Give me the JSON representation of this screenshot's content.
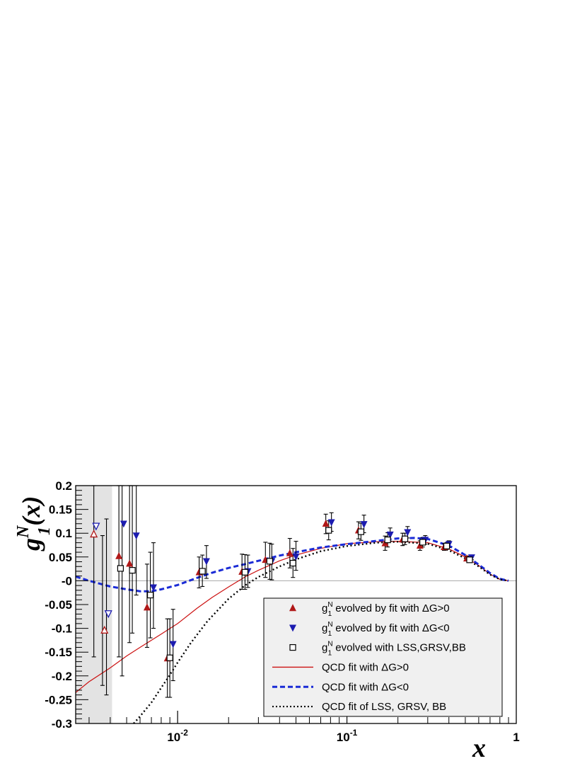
{
  "chart_data": {
    "type": "scatter",
    "xlabel": "x",
    "ylabel": "g",
    "ylabel_sup": "N",
    "ylabel_sub": "1",
    "ylabel_arg": "(x)",
    "xscale": "log",
    "xlim": [
      0.0025,
      1.0
    ],
    "ylim": [
      -0.3,
      0.2
    ],
    "shaded_region": [
      0.0025,
      0.0041
    ],
    "x_tick_labels": [
      {
        "x": 0.01,
        "label": "10",
        "sup": "-2"
      },
      {
        "x": 0.1,
        "label": "10",
        "sup": "-1"
      },
      {
        "x": 1,
        "label": "1",
        "sup": ""
      }
    ],
    "y_tick_labels": [
      {
        "y": 0.2,
        "label": "0.2"
      },
      {
        "y": 0.15,
        "label": "0.15"
      },
      {
        "y": 0.1,
        "label": "0.1"
      },
      {
        "y": 0.05,
        "label": "0.05"
      },
      {
        "y": 0.0,
        "label": "-0"
      },
      {
        "y": -0.05,
        "label": "-0.05"
      },
      {
        "y": -0.1,
        "label": "-0.1"
      },
      {
        "y": -0.15,
        "label": "-0.15"
      },
      {
        "y": -0.2,
        "label": "-0.2"
      },
      {
        "y": -0.25,
        "label": "-0.25"
      },
      {
        "y": -0.3,
        "label": "-0.3"
      }
    ],
    "legend": {
      "position": "bottom-right",
      "entries": [
        {
          "text_main": "g",
          "text_sup": "N",
          "text_sub": "1",
          "text_rest": " evolved by fit with ΔG>0",
          "marker": "triangle-up",
          "color": "#b01818"
        },
        {
          "text_main": "g",
          "text_sup": "N",
          "text_sub": "1",
          "text_rest": " evolved by fit with ΔG<0",
          "marker": "triangle-down",
          "color": "#1c1cb0"
        },
        {
          "text_main": "g",
          "text_sup": "N",
          "text_sub": "1",
          "text_rest": " evolved with LSS,GRSV,BB",
          "marker": "open-square",
          "color": "#000000"
        },
        {
          "text_main": "QCD fit with ΔG>0",
          "text_sup": "",
          "text_sub": "",
          "text_rest": "",
          "marker": "solid-line",
          "color": "#cc1111"
        },
        {
          "text_main": "QCD fit with ΔG<0",
          "text_sup": "",
          "text_sub": "",
          "text_rest": "",
          "marker": "dashed-line",
          "color": "#1a2bd6"
        },
        {
          "text_main": "QCD fit of LSS, GRSV, BB",
          "text_sup": "",
          "text_sub": "",
          "text_rest": "",
          "marker": "dotted-line",
          "color": "#000000"
        }
      ]
    },
    "series": [
      {
        "marker": "triangle-up",
        "color": "#b01818",
        "points": [
          {
            "x": 0.0032,
            "y": 0.098,
            "open": true
          },
          {
            "x": 0.0037,
            "y": -0.104,
            "open": true
          },
          {
            "x": 0.0045,
            "y": 0.052
          },
          {
            "x": 0.0052,
            "y": 0.036
          },
          {
            "x": 0.0066,
            "y": -0.056
          },
          {
            "x": 0.0087,
            "y": -0.163
          },
          {
            "x": 0.0134,
            "y": 0.018
          },
          {
            "x": 0.024,
            "y": 0.019
          },
          {
            "x": 0.033,
            "y": 0.044
          },
          {
            "x": 0.046,
            "y": 0.058
          },
          {
            "x": 0.075,
            "y": 0.12
          },
          {
            "x": 0.117,
            "y": 0.106
          },
          {
            "x": 0.168,
            "y": 0.079
          },
          {
            "x": 0.213,
            "y": 0.087
          },
          {
            "x": 0.27,
            "y": 0.074
          },
          {
            "x": 0.375,
            "y": 0.071
          },
          {
            "x": 0.51,
            "y": 0.047
          }
        ]
      },
      {
        "marker": "triangle-down",
        "color": "#1c1cb0",
        "points": [
          {
            "x": 0.0033,
            "y": 0.115,
            "open": true
          },
          {
            "x": 0.0039,
            "y": -0.069,
            "open": true
          },
          {
            "x": 0.0048,
            "y": 0.12
          },
          {
            "x": 0.0057,
            "y": 0.095
          },
          {
            "x": 0.0072,
            "y": -0.014
          },
          {
            "x": 0.0094,
            "y": -0.133
          },
          {
            "x": 0.0148,
            "y": 0.041
          },
          {
            "x": 0.026,
            "y": 0.02
          },
          {
            "x": 0.036,
            "y": 0.041
          },
          {
            "x": 0.05,
            "y": 0.051
          },
          {
            "x": 0.081,
            "y": 0.123
          },
          {
            "x": 0.126,
            "y": 0.119
          },
          {
            "x": 0.18,
            "y": 0.097
          },
          {
            "x": 0.228,
            "y": 0.102
          },
          {
            "x": 0.29,
            "y": 0.086
          },
          {
            "x": 0.4,
            "y": 0.077
          },
          {
            "x": 0.545,
            "y": 0.049
          }
        ]
      },
      {
        "marker": "open-square",
        "color": "#000000",
        "points": [
          {
            "x": 0.0046,
            "y": 0.026
          },
          {
            "x": 0.0054,
            "y": 0.022
          },
          {
            "x": 0.0069,
            "y": -0.03
          },
          {
            "x": 0.009,
            "y": -0.162
          },
          {
            "x": 0.014,
            "y": 0.02
          },
          {
            "x": 0.025,
            "y": 0.018
          },
          {
            "x": 0.035,
            "y": 0.041
          },
          {
            "x": 0.048,
            "y": 0.037
          },
          {
            "x": 0.078,
            "y": 0.106
          },
          {
            "x": 0.121,
            "y": 0.103
          },
          {
            "x": 0.174,
            "y": 0.086
          },
          {
            "x": 0.22,
            "y": 0.088
          },
          {
            "x": 0.28,
            "y": 0.081
          },
          {
            "x": 0.388,
            "y": 0.073
          },
          {
            "x": 0.53,
            "y": 0.044
          }
        ]
      }
    ],
    "error_bars": [
      {
        "x": 0.0032,
        "lo": -0.16,
        "hi": 0.2
      },
      {
        "x": 0.0036,
        "lo": -0.22,
        "hi": 0.095
      },
      {
        "x": 0.0038,
        "lo": -0.24,
        "hi": 0.13
      },
      {
        "x": 0.0045,
        "lo": -0.16,
        "hi": 0.2
      },
      {
        "x": 0.0047,
        "lo": -0.2,
        "hi": 0.2
      },
      {
        "x": 0.0052,
        "lo": -0.13,
        "hi": 0.2
      },
      {
        "x": 0.0054,
        "lo": -0.11,
        "hi": 0.2
      },
      {
        "x": 0.0057,
        "lo": -0.03,
        "hi": 0.2
      },
      {
        "x": 0.0066,
        "lo": -0.14,
        "hi": 0.035
      },
      {
        "x": 0.0069,
        "lo": -0.12,
        "hi": 0.06
      },
      {
        "x": 0.0072,
        "lo": -0.1,
        "hi": 0.08
      },
      {
        "x": 0.0087,
        "lo": -0.245,
        "hi": -0.08
      },
      {
        "x": 0.009,
        "lo": -0.245,
        "hi": -0.08
      },
      {
        "x": 0.0094,
        "lo": -0.21,
        "hi": -0.06
      },
      {
        "x": 0.0134,
        "lo": -0.015,
        "hi": 0.05
      },
      {
        "x": 0.014,
        "lo": -0.012,
        "hi": 0.054
      },
      {
        "x": 0.0148,
        "lo": 0.005,
        "hi": 0.074
      },
      {
        "x": 0.024,
        "lo": -0.018,
        "hi": 0.056
      },
      {
        "x": 0.025,
        "lo": -0.018,
        "hi": 0.055
      },
      {
        "x": 0.026,
        "lo": -0.014,
        "hi": 0.054
      },
      {
        "x": 0.033,
        "lo": 0.007,
        "hi": 0.081
      },
      {
        "x": 0.035,
        "lo": 0.003,
        "hi": 0.079
      },
      {
        "x": 0.036,
        "lo": 0.002,
        "hi": 0.077
      },
      {
        "x": 0.046,
        "lo": 0.027,
        "hi": 0.089
      },
      {
        "x": 0.048,
        "lo": 0.007,
        "hi": 0.068
      },
      {
        "x": 0.05,
        "lo": 0.022,
        "hi": 0.083
      },
      {
        "x": 0.075,
        "lo": 0.099,
        "hi": 0.14
      },
      {
        "x": 0.078,
        "lo": 0.086,
        "hi": 0.126
      },
      {
        "x": 0.081,
        "lo": 0.104,
        "hi": 0.143
      },
      {
        "x": 0.117,
        "lo": 0.088,
        "hi": 0.124
      },
      {
        "x": 0.121,
        "lo": 0.085,
        "hi": 0.121
      },
      {
        "x": 0.126,
        "lo": 0.101,
        "hi": 0.138
      },
      {
        "x": 0.168,
        "lo": 0.064,
        "hi": 0.094
      },
      {
        "x": 0.174,
        "lo": 0.071,
        "hi": 0.101
      },
      {
        "x": 0.18,
        "lo": 0.083,
        "hi": 0.111
      },
      {
        "x": 0.213,
        "lo": 0.074,
        "hi": 0.1
      },
      {
        "x": 0.22,
        "lo": 0.076,
        "hi": 0.1
      },
      {
        "x": 0.228,
        "lo": 0.09,
        "hi": 0.114
      },
      {
        "x": 0.27,
        "lo": 0.064,
        "hi": 0.084
      },
      {
        "x": 0.28,
        "lo": 0.071,
        "hi": 0.091
      },
      {
        "x": 0.29,
        "lo": 0.077,
        "hi": 0.095
      },
      {
        "x": 0.375,
        "lo": 0.064,
        "hi": 0.078
      },
      {
        "x": 0.388,
        "lo": 0.066,
        "hi": 0.08
      },
      {
        "x": 0.4,
        "lo": 0.07,
        "hi": 0.084
      },
      {
        "x": 0.51,
        "lo": 0.042,
        "hi": 0.052
      },
      {
        "x": 0.53,
        "lo": 0.04,
        "hi": 0.049
      },
      {
        "x": 0.545,
        "lo": 0.044,
        "hi": 0.054
      }
    ],
    "curves": [
      {
        "style": "solid",
        "color": "#cc1111",
        "points": [
          [
            0.0025,
            -0.235
          ],
          [
            0.003,
            -0.212
          ],
          [
            0.004,
            -0.183
          ],
          [
            0.005,
            -0.158
          ],
          [
            0.006,
            -0.14
          ],
          [
            0.008,
            -0.112
          ],
          [
            0.01,
            -0.09
          ],
          [
            0.013,
            -0.058
          ],
          [
            0.016,
            -0.035
          ],
          [
            0.02,
            -0.013
          ],
          [
            0.025,
            0.008
          ],
          [
            0.03,
            0.022
          ],
          [
            0.04,
            0.042
          ],
          [
            0.05,
            0.054
          ],
          [
            0.07,
            0.068
          ],
          [
            0.1,
            0.078
          ],
          [
            0.15,
            0.082
          ],
          [
            0.2,
            0.083
          ],
          [
            0.3,
            0.08
          ],
          [
            0.4,
            0.067
          ],
          [
            0.5,
            0.05
          ],
          [
            0.6,
            0.032
          ],
          [
            0.7,
            0.014
          ],
          [
            0.8,
            0.003
          ],
          [
            0.9,
            0.0
          ]
        ]
      },
      {
        "style": "dashed",
        "color": "#1a2bd6",
        "points": [
          [
            0.0025,
            0.009
          ],
          [
            0.003,
            0.0
          ],
          [
            0.004,
            -0.012
          ],
          [
            0.005,
            -0.018
          ],
          [
            0.006,
            -0.022
          ],
          [
            0.007,
            -0.022
          ],
          [
            0.008,
            -0.018
          ],
          [
            0.01,
            -0.009
          ],
          [
            0.013,
            0.006
          ],
          [
            0.016,
            0.017
          ],
          [
            0.02,
            0.027
          ],
          [
            0.025,
            0.035
          ],
          [
            0.03,
            0.042
          ],
          [
            0.04,
            0.053
          ],
          [
            0.05,
            0.06
          ],
          [
            0.07,
            0.07
          ],
          [
            0.1,
            0.077
          ],
          [
            0.15,
            0.084
          ],
          [
            0.2,
            0.089
          ],
          [
            0.25,
            0.09
          ],
          [
            0.3,
            0.088
          ],
          [
            0.4,
            0.074
          ],
          [
            0.5,
            0.054
          ],
          [
            0.6,
            0.034
          ],
          [
            0.7,
            0.016
          ],
          [
            0.8,
            0.004
          ],
          [
            0.9,
            0.0
          ]
        ]
      },
      {
        "style": "dotted",
        "color": "#000000",
        "points": [
          [
            0.0055,
            -0.3
          ],
          [
            0.006,
            -0.285
          ],
          [
            0.007,
            -0.256
          ],
          [
            0.008,
            -0.225
          ],
          [
            0.009,
            -0.198
          ],
          [
            0.01,
            -0.172
          ],
          [
            0.012,
            -0.13
          ],
          [
            0.015,
            -0.085
          ],
          [
            0.02,
            -0.038
          ],
          [
            0.025,
            -0.01
          ],
          [
            0.03,
            0.008
          ],
          [
            0.04,
            0.03
          ],
          [
            0.05,
            0.045
          ],
          [
            0.07,
            0.062
          ],
          [
            0.1,
            0.073
          ],
          [
            0.15,
            0.08
          ],
          [
            0.2,
            0.082
          ],
          [
            0.3,
            0.078
          ],
          [
            0.4,
            0.064
          ],
          [
            0.5,
            0.047
          ],
          [
            0.6,
            0.03
          ],
          [
            0.7,
            0.013
          ],
          [
            0.8,
            0.003
          ],
          [
            0.9,
            0.0
          ]
        ]
      }
    ],
    "grid": false,
    "zero_line": true
  }
}
